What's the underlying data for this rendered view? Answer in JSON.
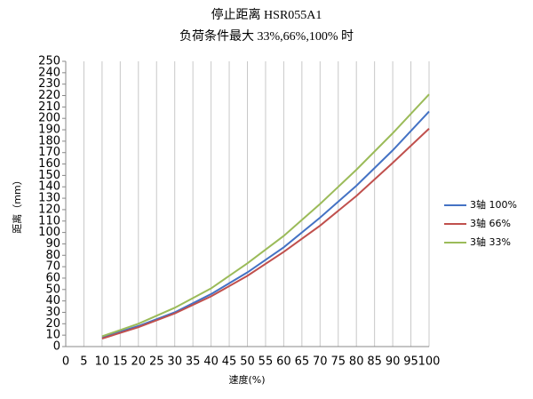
{
  "chart_data": {
    "type": "line",
    "title": "停止距离 HSR055A1",
    "subtitle": "负荷条件最大 33%,66%,100% 时",
    "x_label": "速度(%)",
    "y_label": "距离（mm）",
    "x": [
      10,
      20,
      30,
      40,
      50,
      60,
      70,
      80,
      90,
      100
    ],
    "series": [
      {
        "name": "3轴 100%",
        "color": "#4472c4",
        "values": [
          8,
          18,
          30,
          46,
          65,
          87,
          113,
          141,
          172,
          206
        ]
      },
      {
        "name": "3轴 66%",
        "color": "#c0504d",
        "values": [
          7,
          17,
          29,
          44,
          62,
          83,
          106,
          132,
          161,
          191
        ]
      },
      {
        "name": "3轴 33%",
        "color": "#9bbb59",
        "values": [
          9,
          20,
          34,
          51,
          73,
          97,
          125,
          155,
          187,
          221
        ]
      }
    ],
    "xlim": [
      0,
      100
    ],
    "xticks": [
      0,
      5,
      10,
      15,
      20,
      25,
      30,
      35,
      40,
      45,
      50,
      55,
      60,
      65,
      70,
      75,
      80,
      85,
      90,
      95,
      100
    ],
    "ylim": [
      0,
      250
    ],
    "yticks": [
      0,
      10,
      20,
      30,
      40,
      50,
      60,
      70,
      80,
      90,
      100,
      110,
      120,
      130,
      140,
      150,
      160,
      170,
      180,
      190,
      200,
      210,
      220,
      230,
      240,
      250
    ],
    "grid": "x",
    "legend": "right"
  }
}
